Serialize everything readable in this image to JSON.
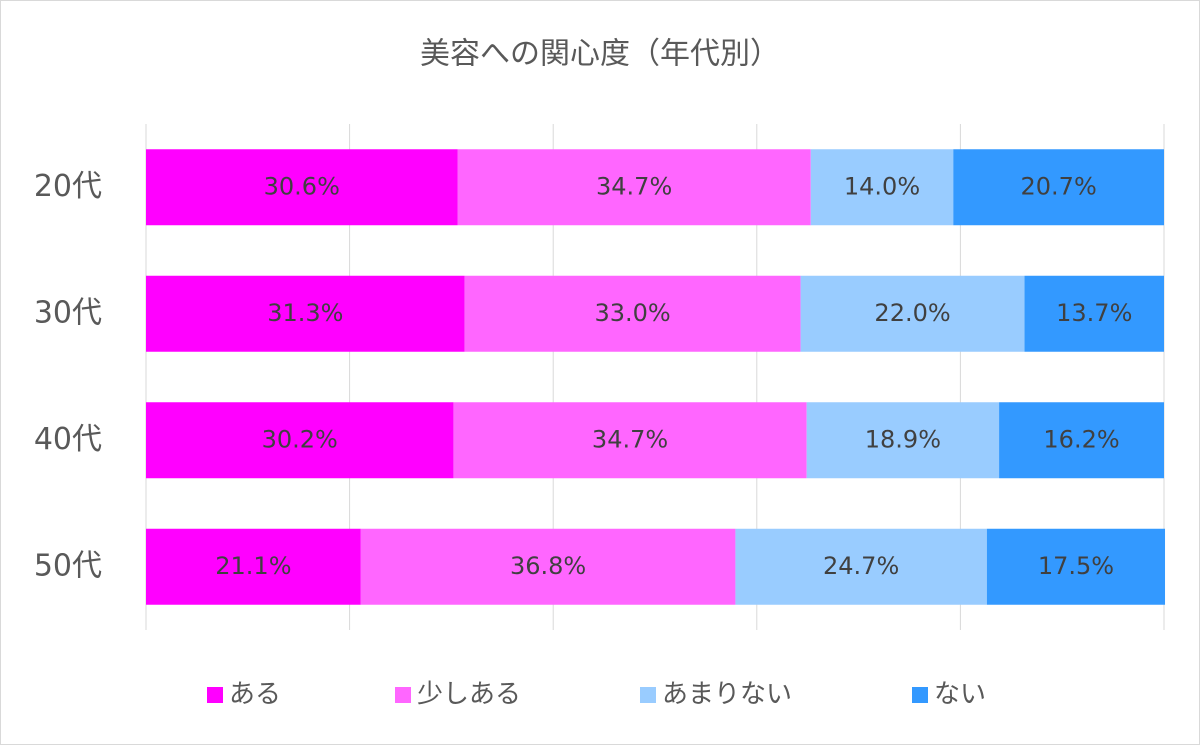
{
  "chart_data": {
    "type": "stacked-bar",
    "title": "美容への関心度（年代別）",
    "categories": [
      "20代",
      "30代",
      "40代",
      "50代"
    ],
    "series": [
      {
        "name": "ある",
        "color": "#ff00ff",
        "values": [
          30.6,
          31.3,
          30.2,
          21.1
        ],
        "value_labels": [
          "30.6%",
          "31.3%",
          "30.2%",
          "21.1%"
        ]
      },
      {
        "name": "少しある",
        "color": "#ff66ff",
        "values": [
          34.7,
          33.0,
          34.7,
          36.8
        ],
        "value_labels": [
          "34.7%",
          "33.0%",
          "34.7%",
          "36.8%"
        ]
      },
      {
        "name": "あまりない",
        "color": "#99ccff",
        "values": [
          14.0,
          22.0,
          18.9,
          24.7
        ],
        "value_labels": [
          "14.0%",
          "22.0%",
          "18.9%",
          "24.7%"
        ]
      },
      {
        "name": "ない",
        "color": "#3399ff",
        "values": [
          20.7,
          13.7,
          16.2,
          17.5
        ],
        "value_labels": [
          "20.7%",
          "13.7%",
          "16.2%",
          "17.5%"
        ]
      }
    ],
    "xlim": [
      0,
      100
    ],
    "xticks": [
      0,
      20,
      40,
      60,
      80,
      100
    ],
    "grid": true,
    "legend": "bottom"
  }
}
